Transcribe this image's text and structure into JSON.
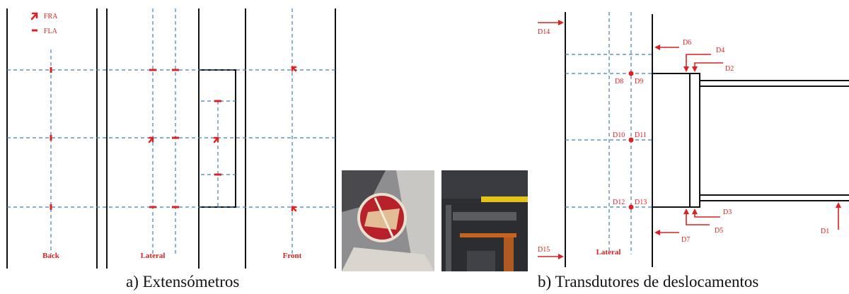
{
  "captions": {
    "a": "a) Extensómetros",
    "b": "b) Transdutores de deslocamentos"
  },
  "panel_a": {
    "legend": {
      "fra": "FRA",
      "fla": "FLA"
    },
    "face_labels": {
      "back": "Back",
      "lateral": "Lateral",
      "front": "Front"
    }
  },
  "panel_b": {
    "transducers": [
      "D1",
      "D2",
      "D3",
      "D4",
      "D5",
      "D6",
      "D7",
      "D8",
      "D9",
      "D10",
      "D11",
      "D12",
      "D13",
      "D14",
      "D15"
    ],
    "face_label": "Lateral"
  },
  "colors": {
    "annotation_red": "#e02020",
    "grid_blue": "#3f7fbf",
    "structure_black": "#111111"
  }
}
